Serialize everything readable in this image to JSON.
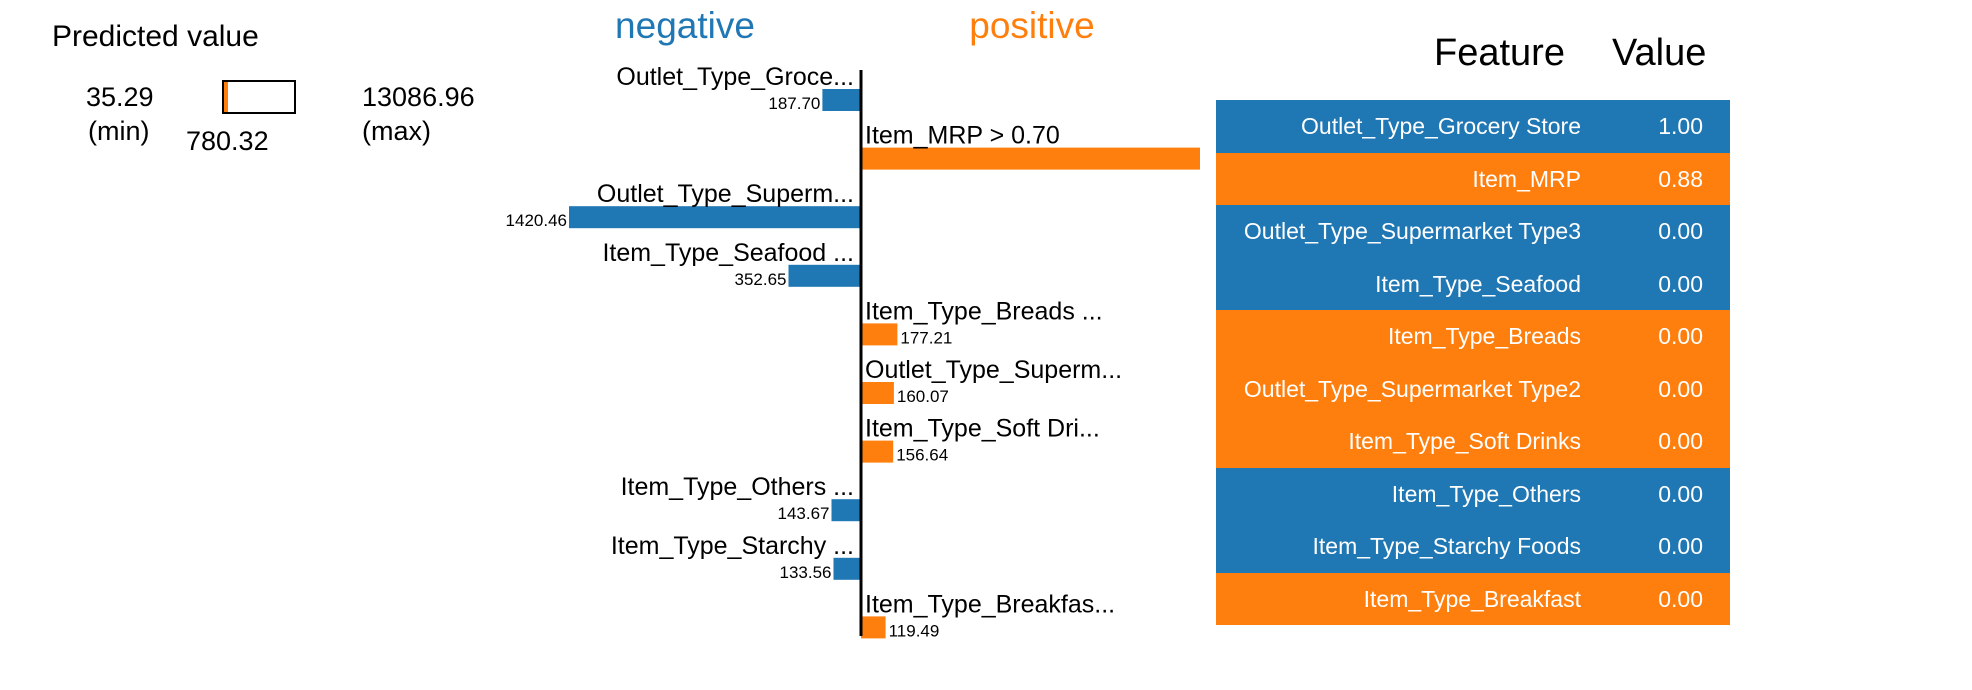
{
  "colors": {
    "negative": "#1f77b4",
    "positive": "#ff7f0e",
    "axis": "#000000"
  },
  "prediction": {
    "title": "Predicted value",
    "min_value": "35.29",
    "min_label": "(min)",
    "max_value": "13086.96",
    "max_label": "(max)",
    "value": "780.32",
    "min": 35.29,
    "max": 13086.96,
    "predicted": 780.32
  },
  "chart_data": {
    "type": "bar",
    "orientation": "horizontal-diverging",
    "headers": {
      "negative": "negative",
      "positive": "positive"
    },
    "bars": [
      {
        "label": "Outlet_Type_Groce...",
        "value": 187.7,
        "display": "187.70",
        "side": "negative"
      },
      {
        "label": "Item_MRP > 0.70",
        "value": 1657.09,
        "display": "1657.09",
        "side": "positive"
      },
      {
        "label": "Outlet_Type_Superm...",
        "value": 1420.46,
        "display": "1420.46",
        "side": "negative"
      },
      {
        "label": "Item_Type_Seafood ...",
        "value": 352.65,
        "display": "352.65",
        "side": "negative"
      },
      {
        "label": "Item_Type_Breads ...",
        "value": 177.21,
        "display": "177.21",
        "side": "positive"
      },
      {
        "label": "Outlet_Type_Superm...",
        "value": 160.07,
        "display": "160.07",
        "side": "positive"
      },
      {
        "label": "Item_Type_Soft Dri...",
        "value": 156.64,
        "display": "156.64",
        "side": "positive"
      },
      {
        "label": "Item_Type_Others ...",
        "value": 143.67,
        "display": "143.67",
        "side": "negative"
      },
      {
        "label": "Item_Type_Starchy ...",
        "value": 133.56,
        "display": "133.56",
        "side": "negative"
      },
      {
        "label": "Item_Type_Breakfas...",
        "value": 119.49,
        "display": "119.49",
        "side": "positive"
      }
    ]
  },
  "feature_table": {
    "header_feature": "Feature",
    "header_value": "Value",
    "rows": [
      {
        "feature": "Outlet_Type_Grocery Store",
        "value": "1.00",
        "side": "negative"
      },
      {
        "feature": "Item_MRP",
        "value": "0.88",
        "side": "positive"
      },
      {
        "feature": "Outlet_Type_Supermarket Type3",
        "value": "0.00",
        "side": "negative"
      },
      {
        "feature": "Item_Type_Seafood",
        "value": "0.00",
        "side": "negative"
      },
      {
        "feature": "Item_Type_Breads",
        "value": "0.00",
        "side": "positive"
      },
      {
        "feature": "Outlet_Type_Supermarket Type2",
        "value": "0.00",
        "side": "positive"
      },
      {
        "feature": "Item_Type_Soft Drinks",
        "value": "0.00",
        "side": "positive"
      },
      {
        "feature": "Item_Type_Others",
        "value": "0.00",
        "side": "negative"
      },
      {
        "feature": "Item_Type_Starchy Foods",
        "value": "0.00",
        "side": "negative"
      },
      {
        "feature": "Item_Type_Breakfast",
        "value": "0.00",
        "side": "positive"
      }
    ]
  }
}
